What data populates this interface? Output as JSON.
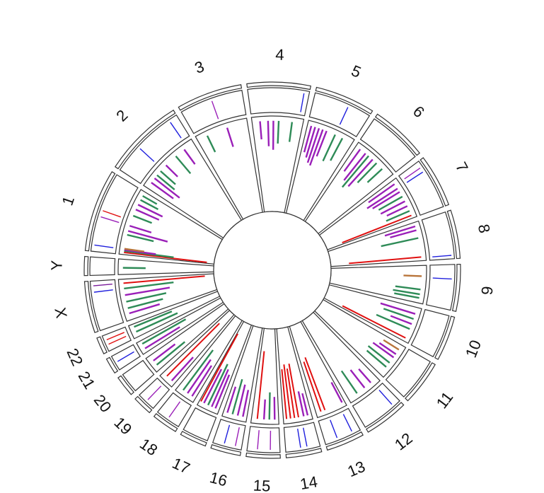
{
  "chart_data": {
    "type": "circos",
    "title": "",
    "chromosomes": [
      {
        "name": "1",
        "size": 249
      },
      {
        "name": "2",
        "size": 243
      },
      {
        "name": "3",
        "size": 198
      },
      {
        "name": "4",
        "size": 191
      },
      {
        "name": "5",
        "size": 181
      },
      {
        "name": "6",
        "size": 171
      },
      {
        "name": "7",
        "size": 159
      },
      {
        "name": "8",
        "size": 146
      },
      {
        "name": "9",
        "size": 141
      },
      {
        "name": "10",
        "size": 135
      },
      {
        "name": "11",
        "size": 135
      },
      {
        "name": "12",
        "size": 133
      },
      {
        "name": "13",
        "size": 115
      },
      {
        "name": "14",
        "size": 107
      },
      {
        "name": "15",
        "size": 102
      },
      {
        "name": "16",
        "size": 90
      },
      {
        "name": "17",
        "size": 81
      },
      {
        "name": "18",
        "size": 78
      },
      {
        "name": "19",
        "size": 59
      },
      {
        "name": "20",
        "size": 63
      },
      {
        "name": "21",
        "size": 48
      },
      {
        "name": "22",
        "size": 51
      },
      {
        "name": "X",
        "size": 155
      },
      {
        "name": "Y",
        "size": 57
      }
    ],
    "colors": {
      "blue": "#1f1fdd",
      "purple": "#9a1fb8",
      "red": "#e01010",
      "green": "#2e8b57",
      "brown": "#b8743a",
      "dark_purple": "#7a1a9a"
    },
    "tracks": [
      {
        "name": "outer",
        "features": [
          {
            "chr": "1",
            "pos": 20,
            "color": "blue"
          },
          {
            "chr": "1",
            "pos": 110,
            "color": "purple"
          },
          {
            "chr": "1",
            "pos": 130,
            "color": "red"
          },
          {
            "chr": "2",
            "pos": 90,
            "color": "blue"
          },
          {
            "chr": "2",
            "pos": 215,
            "color": "blue"
          },
          {
            "chr": "3",
            "pos": 100,
            "color": "purple"
          },
          {
            "chr": "4",
            "pos": 175,
            "color": "blue"
          },
          {
            "chr": "5",
            "pos": 110,
            "color": "blue"
          },
          {
            "chr": "7",
            "pos": 20,
            "color": "purple"
          },
          {
            "chr": "7",
            "pos": 35,
            "color": "blue"
          },
          {
            "chr": "8",
            "pos": 135,
            "color": "blue"
          },
          {
            "chr": "9",
            "pos": 45,
            "color": "blue"
          },
          {
            "chr": "12",
            "pos": 25,
            "color": "blue"
          },
          {
            "chr": "13",
            "pos": 25,
            "color": "blue"
          },
          {
            "chr": "13",
            "pos": 75,
            "color": "blue"
          },
          {
            "chr": "14",
            "pos": 40,
            "color": "blue"
          },
          {
            "chr": "14",
            "pos": 60,
            "color": "blue"
          },
          {
            "chr": "15",
            "pos": 30,
            "color": "purple"
          },
          {
            "chr": "15",
            "pos": 70,
            "color": "purple"
          },
          {
            "chr": "16",
            "pos": 20,
            "color": "purple"
          },
          {
            "chr": "16",
            "pos": 55,
            "color": "blue"
          },
          {
            "chr": "18",
            "pos": 40,
            "color": "purple"
          },
          {
            "chr": "19",
            "pos": 30,
            "color": "purple"
          },
          {
            "chr": "21",
            "pos": 25,
            "color": "blue"
          },
          {
            "chr": "22",
            "pos": 20,
            "color": "red"
          },
          {
            "chr": "22",
            "pos": 35,
            "color": "red"
          },
          {
            "chr": "X",
            "pos": 120,
            "color": "blue"
          },
          {
            "chr": "X",
            "pos": 140,
            "color": "dark_purple"
          }
        ]
      },
      {
        "name": "inner",
        "features": [
          {
            "chr": "1",
            "pos": 8,
            "h": 0.92,
            "color": "red"
          },
          {
            "chr": "1",
            "pos": 14,
            "h": 0.55,
            "color": "green"
          },
          {
            "chr": "1",
            "pos": 18,
            "h": 0.35,
            "color": "purple"
          },
          {
            "chr": "1",
            "pos": 22,
            "h": 0.22,
            "color": "brown"
          },
          {
            "chr": "1",
            "pos": 75,
            "h": 0.3,
            "color": "green"
          },
          {
            "chr": "1",
            "pos": 90,
            "h": 0.45,
            "color": "purple"
          },
          {
            "chr": "1",
            "pos": 110,
            "h": 0.25,
            "color": "purple"
          },
          {
            "chr": "1",
            "pos": 150,
            "h": 0.22,
            "color": "green"
          },
          {
            "chr": "1",
            "pos": 175,
            "h": 0.28,
            "color": "purple"
          },
          {
            "chr": "1",
            "pos": 195,
            "h": 0.3,
            "color": "purple"
          },
          {
            "chr": "1",
            "pos": 215,
            "h": 0.22,
            "color": "green"
          },
          {
            "chr": "1",
            "pos": 232,
            "h": 0.18,
            "color": "green"
          },
          {
            "chr": "2",
            "pos": 25,
            "h": 0.3,
            "color": "purple"
          },
          {
            "chr": "2",
            "pos": 45,
            "h": 0.35,
            "color": "purple"
          },
          {
            "chr": "2",
            "pos": 60,
            "h": 0.25,
            "color": "green"
          },
          {
            "chr": "2",
            "pos": 80,
            "h": 0.22,
            "color": "green"
          },
          {
            "chr": "2",
            "pos": 110,
            "h": 0.18,
            "color": "purple"
          },
          {
            "chr": "2",
            "pos": 160,
            "h": 0.25,
            "color": "green"
          },
          {
            "chr": "2",
            "pos": 200,
            "h": 0.2,
            "color": "purple"
          },
          {
            "chr": "3",
            "pos": 40,
            "h": 0.2,
            "color": "green"
          },
          {
            "chr": "3",
            "pos": 120,
            "h": 0.22,
            "color": "purple"
          },
          {
            "chr": "4",
            "pos": 30,
            "h": 0.2,
            "color": "purple"
          },
          {
            "chr": "4",
            "pos": 60,
            "h": 0.28,
            "color": "purple"
          },
          {
            "chr": "4",
            "pos": 80,
            "h": 0.32,
            "color": "purple"
          },
          {
            "chr": "4",
            "pos": 100,
            "h": 0.25,
            "color": "green"
          },
          {
            "chr": "4",
            "pos": 150,
            "h": 0.22,
            "color": "green"
          },
          {
            "chr": "5",
            "pos": 15,
            "h": 0.3,
            "color": "purple"
          },
          {
            "chr": "5",
            "pos": 30,
            "h": 0.35,
            "color": "purple"
          },
          {
            "chr": "5",
            "pos": 45,
            "h": 0.4,
            "color": "purple"
          },
          {
            "chr": "5",
            "pos": 60,
            "h": 0.42,
            "color": "purple"
          },
          {
            "chr": "5",
            "pos": 75,
            "h": 0.3,
            "color": "purple"
          },
          {
            "chr": "5",
            "pos": 110,
            "h": 0.32,
            "color": "green"
          },
          {
            "chr": "5",
            "pos": 140,
            "h": 0.28,
            "color": "green"
          },
          {
            "chr": "6",
            "pos": 20,
            "h": 0.3,
            "color": "purple"
          },
          {
            "chr": "6",
            "pos": 45,
            "h": 0.38,
            "color": "purple"
          },
          {
            "chr": "6",
            "pos": 60,
            "h": 0.45,
            "color": "green"
          },
          {
            "chr": "6",
            "pos": 80,
            "h": 0.4,
            "color": "purple"
          },
          {
            "chr": "6",
            "pos": 100,
            "h": 0.3,
            "color": "green"
          },
          {
            "chr": "6",
            "pos": 130,
            "h": 0.22,
            "color": "green"
          },
          {
            "chr": "7",
            "pos": 15,
            "h": 0.35,
            "color": "purple"
          },
          {
            "chr": "7",
            "pos": 35,
            "h": 0.4,
            "color": "purple"
          },
          {
            "chr": "7",
            "pos": 50,
            "h": 0.35,
            "color": "purple"
          },
          {
            "chr": "7",
            "pos": 70,
            "h": 0.3,
            "color": "green"
          },
          {
            "chr": "7",
            "pos": 90,
            "h": 0.3,
            "color": "purple"
          },
          {
            "chr": "7",
            "pos": 110,
            "h": 0.25,
            "color": "purple"
          },
          {
            "chr": "7",
            "pos": 130,
            "h": 0.28,
            "color": "green"
          },
          {
            "chr": "7",
            "pos": 148,
            "h": 0.82,
            "color": "red"
          },
          {
            "chr": "8",
            "pos": 15,
            "h": 0.35,
            "color": "purple"
          },
          {
            "chr": "8",
            "pos": 30,
            "h": 0.3,
            "color": "purple"
          },
          {
            "chr": "8",
            "pos": 60,
            "h": 0.42,
            "color": "green"
          },
          {
            "chr": "8",
            "pos": 132,
            "h": 0.8,
            "color": "red"
          },
          {
            "chr": "9",
            "pos": 40,
            "h": 0.2,
            "color": "brown"
          },
          {
            "chr": "9",
            "pos": 90,
            "h": 0.28,
            "color": "green"
          },
          {
            "chr": "9",
            "pos": 108,
            "h": 0.3,
            "color": "green"
          },
          {
            "chr": "9",
            "pos": 122,
            "h": 0.28,
            "color": "green"
          },
          {
            "chr": "10",
            "pos": 25,
            "h": 0.4,
            "color": "purple"
          },
          {
            "chr": "10",
            "pos": 45,
            "h": 0.35,
            "color": "green"
          },
          {
            "chr": "10",
            "pos": 65,
            "h": 0.25,
            "color": "purple"
          },
          {
            "chr": "10",
            "pos": 85,
            "h": 0.4,
            "color": "green"
          },
          {
            "chr": "10",
            "pos": 122,
            "h": 0.78,
            "color": "red"
          },
          {
            "chr": "11",
            "pos": 20,
            "h": 0.2,
            "color": "brown"
          },
          {
            "chr": "11",
            "pos": 40,
            "h": 0.22,
            "color": "purple"
          },
          {
            "chr": "11",
            "pos": 55,
            "h": 0.28,
            "color": "purple"
          },
          {
            "chr": "11",
            "pos": 80,
            "h": 0.3,
            "color": "green"
          },
          {
            "chr": "11",
            "pos": 100,
            "h": 0.28,
            "color": "green"
          },
          {
            "chr": "12",
            "pos": 30,
            "h": 0.2,
            "color": "purple"
          },
          {
            "chr": "12",
            "pos": 60,
            "h": 0.25,
            "color": "purple"
          },
          {
            "chr": "12",
            "pos": 95,
            "h": 0.3,
            "color": "green"
          },
          {
            "chr": "13",
            "pos": 10,
            "h": 0.25,
            "color": "purple"
          },
          {
            "chr": "13",
            "pos": 80,
            "h": 0.62,
            "color": "red"
          },
          {
            "chr": "13",
            "pos": 96,
            "h": 0.58,
            "color": "red"
          },
          {
            "chr": "14",
            "pos": 15,
            "h": 0.25,
            "color": "purple"
          },
          {
            "chr": "14",
            "pos": 30,
            "h": 0.28,
            "color": "purple"
          },
          {
            "chr": "14",
            "pos": 50,
            "h": 0.6,
            "color": "red"
          },
          {
            "chr": "14",
            "pos": 65,
            "h": 0.55,
            "color": "red"
          },
          {
            "chr": "14",
            "pos": 80,
            "h": 0.6,
            "color": "red"
          },
          {
            "chr": "14",
            "pos": 95,
            "h": 0.55,
            "color": "red"
          },
          {
            "chr": "15",
            "pos": 15,
            "h": 0.25,
            "color": "purple"
          },
          {
            "chr": "15",
            "pos": 35,
            "h": 0.3,
            "color": "green"
          },
          {
            "chr": "15",
            "pos": 55,
            "h": 0.22,
            "color": "purple"
          },
          {
            "chr": "15",
            "pos": 80,
            "h": 0.75,
            "color": "red"
          },
          {
            "chr": "16",
            "pos": 15,
            "h": 0.3,
            "color": "purple"
          },
          {
            "chr": "16",
            "pos": 35,
            "h": 0.35,
            "color": "purple"
          },
          {
            "chr": "16",
            "pos": 55,
            "h": 0.4,
            "color": "green"
          },
          {
            "chr": "16",
            "pos": 75,
            "h": 0.3,
            "color": "purple"
          },
          {
            "chr": "17",
            "pos": 15,
            "h": 0.4,
            "color": "purple"
          },
          {
            "chr": "17",
            "pos": 30,
            "h": 0.45,
            "color": "purple"
          },
          {
            "chr": "17",
            "pos": 45,
            "h": 0.5,
            "color": "green"
          },
          {
            "chr": "17",
            "pos": 62,
            "h": 0.42,
            "color": "purple"
          },
          {
            "chr": "17",
            "pos": 75,
            "h": 0.85,
            "color": "red"
          },
          {
            "chr": "18",
            "pos": 15,
            "h": 0.4,
            "color": "purple"
          },
          {
            "chr": "18",
            "pos": 35,
            "h": 0.45,
            "color": "purple"
          },
          {
            "chr": "18",
            "pos": 55,
            "h": 0.55,
            "color": "green"
          },
          {
            "chr": "19",
            "pos": 15,
            "h": 0.35,
            "color": "purple"
          },
          {
            "chr": "19",
            "pos": 40,
            "h": 0.82,
            "color": "red"
          },
          {
            "chr": "20",
            "pos": 20,
            "h": 0.4,
            "color": "green"
          },
          {
            "chr": "20",
            "pos": 40,
            "h": 0.3,
            "color": "purple"
          },
          {
            "chr": "21",
            "pos": 15,
            "h": 0.45,
            "color": "purple"
          },
          {
            "chr": "21",
            "pos": 35,
            "h": 0.55,
            "color": "green"
          },
          {
            "chr": "22",
            "pos": 20,
            "h": 0.5,
            "color": "green"
          },
          {
            "chr": "22",
            "pos": 40,
            "h": 0.45,
            "color": "green"
          },
          {
            "chr": "X",
            "pos": 25,
            "h": 0.35,
            "color": "purple"
          },
          {
            "chr": "X",
            "pos": 45,
            "h": 0.4,
            "color": "green"
          },
          {
            "chr": "X",
            "pos": 70,
            "h": 0.45,
            "color": "green"
          },
          {
            "chr": "X",
            "pos": 95,
            "h": 0.5,
            "color": "purple"
          },
          {
            "chr": "X",
            "pos": 120,
            "h": 0.55,
            "color": "green"
          },
          {
            "chr": "X",
            "pos": 140,
            "h": 0.9,
            "color": "red"
          },
          {
            "chr": "Y",
            "pos": 25,
            "h": 0.25,
            "color": "green"
          }
        ]
      }
    ]
  }
}
